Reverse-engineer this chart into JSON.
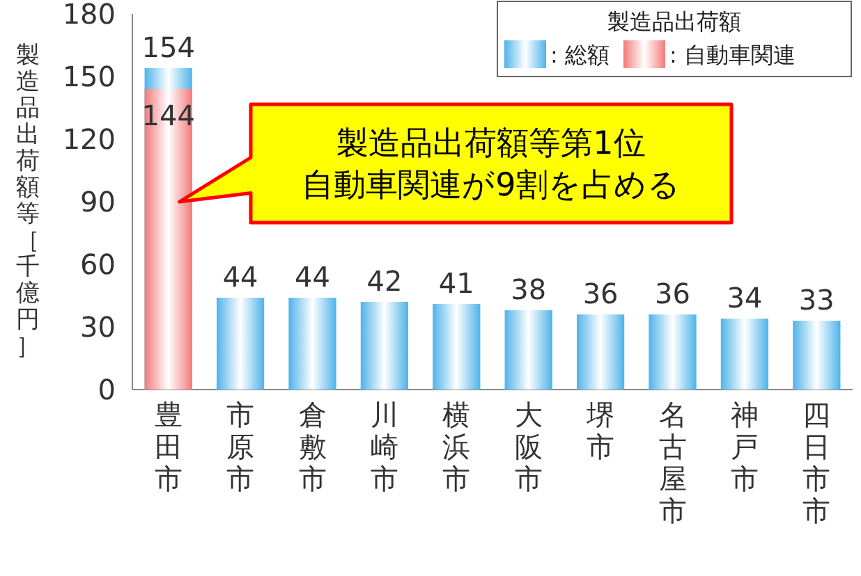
{
  "chart_data": {
    "type": "bar",
    "ylabel": "製造品出荷額等［千億円］",
    "legend_title": "製造品出荷額",
    "categories": [
      "豊田市",
      "市原市",
      "倉敷市",
      "川崎市",
      "横浜市",
      "大阪市",
      "堺市",
      "名古屋市",
      "神戸市",
      "四日市市"
    ],
    "series": [
      {
        "name": ": 総額",
        "color": "#4fb3ea",
        "values": [
          154,
          44,
          44,
          42,
          41,
          38,
          36,
          36,
          34,
          33
        ]
      },
      {
        "name": ": 自動車関連",
        "color": "#f47a7a",
        "values": [
          144,
          null,
          null,
          null,
          null,
          null,
          null,
          null,
          null,
          null
        ]
      }
    ],
    "ylim": [
      0,
      180
    ],
    "yticks": [
      0,
      30,
      60,
      90,
      120,
      150,
      180
    ],
    "grid": false,
    "legend": "top right",
    "data_labels": true,
    "annotations": [
      "製造品出荷額等第1位",
      "自動車関連が9割を占める"
    ]
  }
}
